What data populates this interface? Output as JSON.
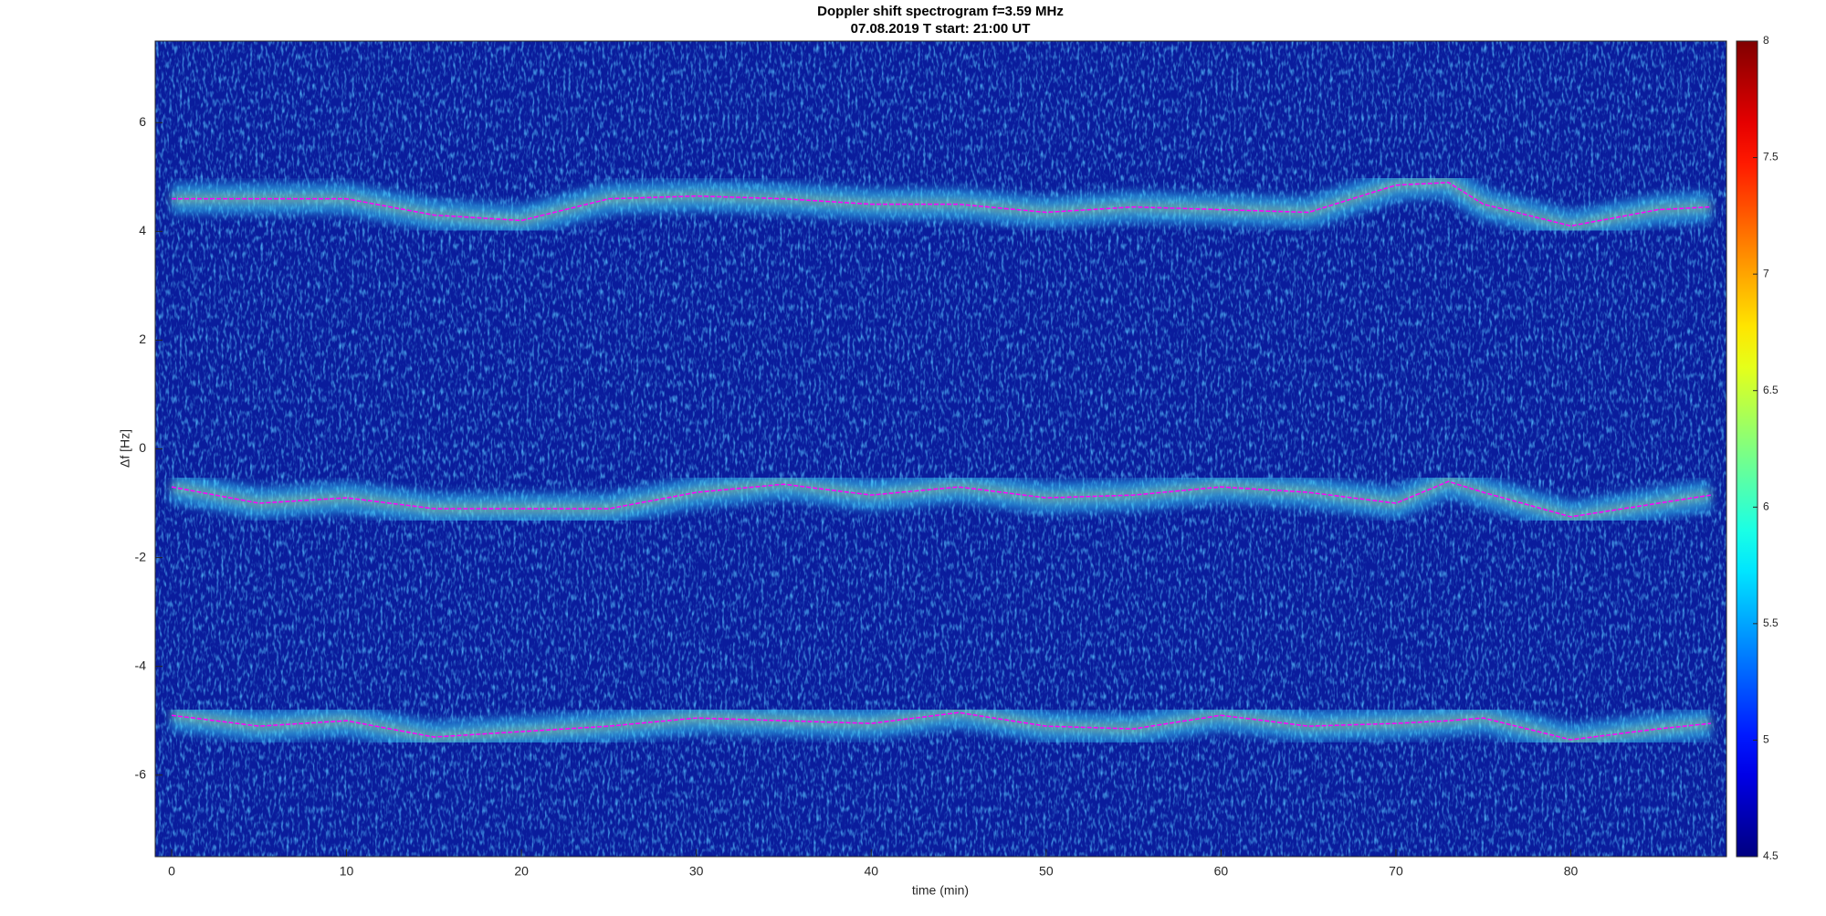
{
  "chart_data": {
    "type": "line",
    "title": "Doppler shift spectrogram f=3.59 MHz",
    "subtitle": "07.08.2019   T start: 21:00 UT",
    "x_label": "time (min)",
    "y_label": "Δf [Hz]",
    "x": [
      0,
      5,
      10,
      15,
      20,
      25,
      30,
      35,
      40,
      45,
      50,
      55,
      60,
      65,
      70,
      73,
      75,
      80,
      85,
      88
    ],
    "series": [
      {
        "color": "#ff00ff",
        "values": [
          4.6,
          4.6,
          4.6,
          4.3,
          4.2,
          4.6,
          4.65,
          4.6,
          4.5,
          4.5,
          4.35,
          4.45,
          4.4,
          4.35,
          4.85,
          4.9,
          4.5,
          4.1,
          4.4,
          4.45
        ]
      },
      {
        "color": "#ff00ff",
        "values": [
          -0.7,
          -1.0,
          -0.9,
          -1.1,
          -1.1,
          -1.1,
          -0.8,
          -0.65,
          -0.85,
          -0.7,
          -0.9,
          -0.85,
          -0.7,
          -0.8,
          -1.0,
          -0.6,
          -0.8,
          -1.25,
          -1.0,
          -0.85
        ]
      },
      {
        "color": "#ff00ff",
        "values": [
          -4.9,
          -5.1,
          -5.0,
          -5.3,
          -5.2,
          -5.1,
          -4.95,
          -5.0,
          -5.05,
          -4.85,
          -5.1,
          -5.15,
          -4.9,
          -5.1,
          -5.05,
          -5.0,
          -4.95,
          -5.35,
          -5.15,
          -5.05
        ]
      }
    ],
    "xlim": [
      -0.94,
      88.9
    ],
    "xticks": [
      0,
      10,
      20,
      30,
      40,
      50,
      60,
      70,
      80
    ],
    "ylim": [
      -7.5,
      7.5
    ],
    "yticks": [
      -6,
      -4,
      -2,
      0,
      2,
      4,
      6
    ],
    "colormap": "jet",
    "clim": [
      4.5,
      8
    ],
    "cticks": [
      4.5,
      5,
      5.5,
      6,
      6.5,
      7,
      7.5,
      8
    ]
  }
}
